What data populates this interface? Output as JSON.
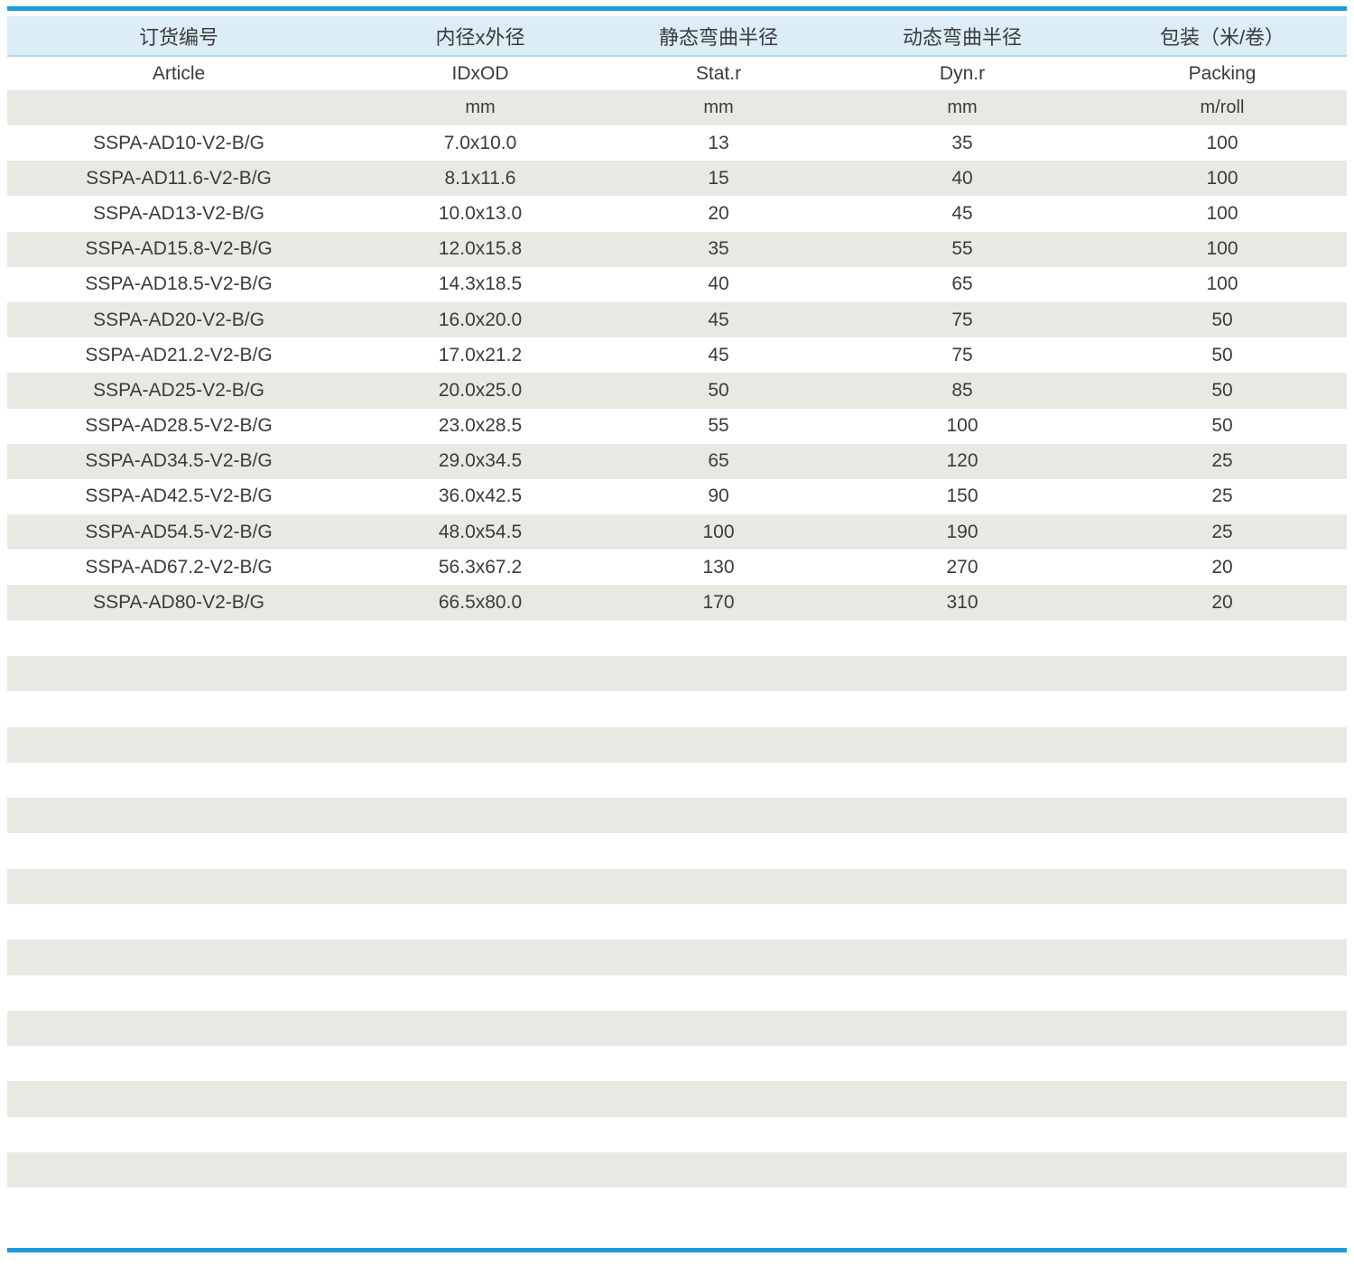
{
  "colors": {
    "rule_blue": "#1b9cd8",
    "header_background": "#dcedf8",
    "header_border": "#b5d7ec",
    "stripe_gray": "#e9e9e4",
    "text": "#3b3b3b"
  },
  "table": {
    "columns": [
      {
        "zh": "订货编号",
        "en": "Article",
        "unit": ""
      },
      {
        "zh": "内径x外径",
        "en": "IDxOD",
        "unit": "mm"
      },
      {
        "zh": "静态弯曲半径",
        "en": "Stat.r",
        "unit": "mm"
      },
      {
        "zh": "动态弯曲半径",
        "en": "Dyn.r",
        "unit": "mm"
      },
      {
        "zh": "包装（米/卷）",
        "en": "Packing",
        "unit": "m/roll"
      }
    ],
    "rows": [
      [
        "SSPA-AD10-V2-B/G",
        "7.0x10.0",
        "13",
        "35",
        "100"
      ],
      [
        "SSPA-AD11.6-V2-B/G",
        "8.1x11.6",
        "15",
        "40",
        "100"
      ],
      [
        "SSPA-AD13-V2-B/G",
        "10.0x13.0",
        "20",
        "45",
        "100"
      ],
      [
        "SSPA-AD15.8-V2-B/G",
        "12.0x15.8",
        "35",
        "55",
        "100"
      ],
      [
        "SSPA-AD18.5-V2-B/G",
        "14.3x18.5",
        "40",
        "65",
        "100"
      ],
      [
        "SSPA-AD20-V2-B/G",
        "16.0x20.0",
        "45",
        "75",
        "50"
      ],
      [
        "SSPA-AD21.2-V2-B/G",
        "17.0x21.2",
        "45",
        "75",
        "50"
      ],
      [
        "SSPA-AD25-V2-B/G",
        "20.0x25.0",
        "50",
        "85",
        "50"
      ],
      [
        "SSPA-AD28.5-V2-B/G",
        "23.0x28.5",
        "55",
        "100",
        "50"
      ],
      [
        "SSPA-AD34.5-V2-B/G",
        "29.0x34.5",
        "65",
        "120",
        "25"
      ],
      [
        "SSPA-AD42.5-V2-B/G",
        "36.0x42.5",
        "90",
        "150",
        "25"
      ],
      [
        "SSPA-AD54.5-V2-B/G",
        "48.0x54.5",
        "100",
        "190",
        "25"
      ],
      [
        "SSPA-AD67.2-V2-B/G",
        "56.3x67.2",
        "130",
        "270",
        "20"
      ],
      [
        "SSPA-AD80-V2-B/G",
        "66.5x80.0",
        "170",
        "310",
        "20"
      ]
    ],
    "empty_row_count": 16
  }
}
